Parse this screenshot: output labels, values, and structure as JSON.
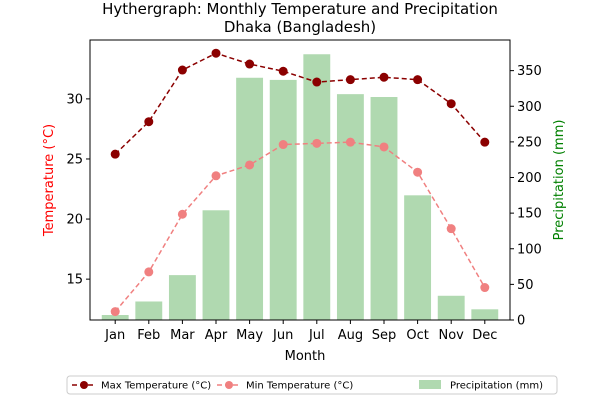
{
  "chart_data": {
    "type": "bar",
    "title": "Hythergraph: Monthly Temperature and Precipitation",
    "subtitle": "Dhaka (Bangladesh)",
    "xlabel": "Month",
    "ylabel_left": "Temperature (°C)",
    "ylabel_right": "Precipitation (mm)",
    "categories": [
      "Jan",
      "Feb",
      "Mar",
      "Apr",
      "May",
      "Jun",
      "Jul",
      "Aug",
      "Sep",
      "Oct",
      "Nov",
      "Dec"
    ],
    "ylim_left": [
      11.6,
      34.9
    ],
    "ylim_right": [
      0,
      393
    ],
    "yticks_left": [
      "15",
      "20",
      "25",
      "30"
    ],
    "yticks_right": [
      "0",
      "50",
      "100",
      "150",
      "200",
      "250",
      "300",
      "350"
    ],
    "series": [
      {
        "name": "Max Temperature (°C)",
        "kind": "line",
        "axis": "left",
        "color": "#8b0000",
        "style": "dashed",
        "values": [
          25.4,
          28.1,
          32.4,
          33.8,
          32.9,
          32.3,
          31.4,
          31.6,
          31.8,
          31.6,
          29.6,
          26.4
        ]
      },
      {
        "name": "Min Temperature (°C)",
        "kind": "line",
        "axis": "left",
        "color": "#f08080",
        "style": "dashed",
        "values": [
          12.3,
          15.6,
          20.4,
          23.6,
          24.5,
          26.2,
          26.3,
          26.4,
          26.0,
          23.9,
          19.2,
          14.3
        ]
      },
      {
        "name": "Precipitation (mm)",
        "kind": "bar",
        "axis": "right",
        "color": "#b0d9b0",
        "values": [
          7,
          26,
          63,
          154,
          340,
          337,
          373,
          317,
          313,
          175,
          34,
          15
        ]
      }
    ],
    "legend_position": "bottom",
    "grid": false
  }
}
